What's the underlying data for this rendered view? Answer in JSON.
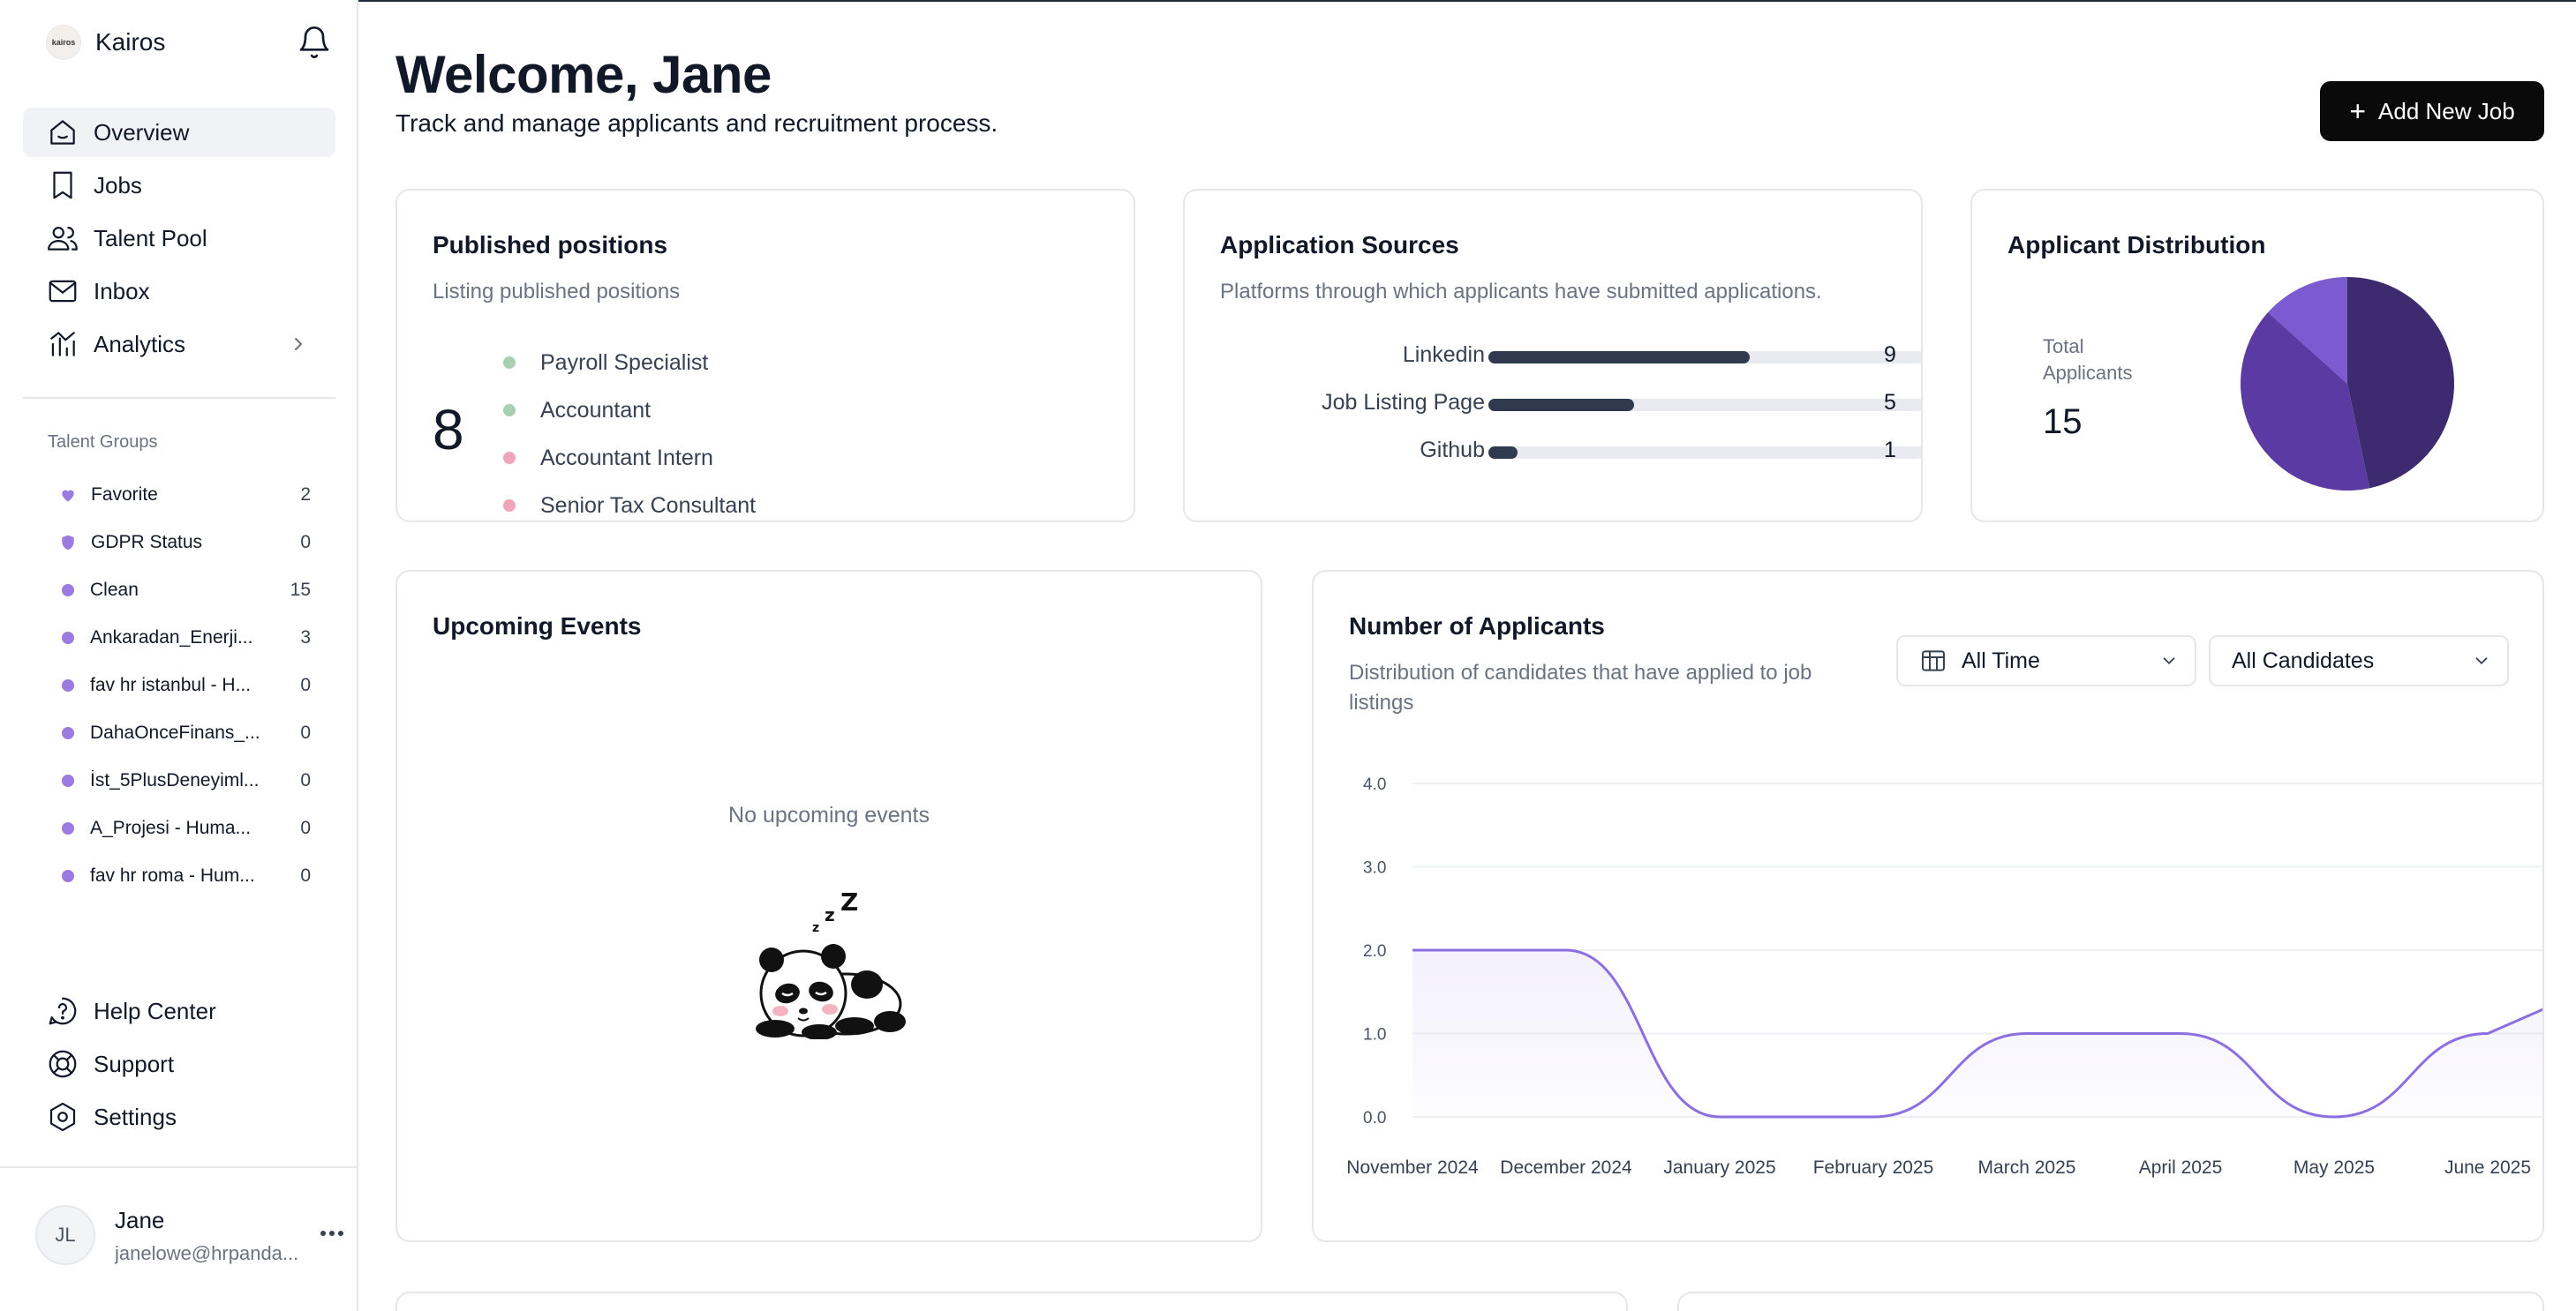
{
  "app": {
    "name": "Kairos",
    "logo_text": "kairos"
  },
  "nav": {
    "main": [
      {
        "label": "Overview",
        "icon": "home-icon",
        "active": true
      },
      {
        "label": "Jobs",
        "icon": "bookmark-icon"
      },
      {
        "label": "Talent Pool",
        "icon": "users-icon"
      },
      {
        "label": "Inbox",
        "icon": "mail-icon"
      },
      {
        "label": "Analytics",
        "icon": "chart-icon"
      }
    ],
    "talent_groups_title": "Talent Groups",
    "talent_groups": [
      {
        "name": "Favorite",
        "count": "2",
        "icon": "heart-icon"
      },
      {
        "name": "GDPR Status",
        "count": "0",
        "icon": "shield-icon"
      },
      {
        "name": "Clean",
        "count": "15"
      },
      {
        "name": "Ankaradan_Enerji...",
        "count": "3"
      },
      {
        "name": "fav hr istanbul - H...",
        "count": "0"
      },
      {
        "name": "DahaOnceFinans_...",
        "count": "0"
      },
      {
        "name": "İst_5PlusDeneyiml...",
        "count": "0"
      },
      {
        "name": "A_Projesi - Huma...",
        "count": "0"
      },
      {
        "name": "fav hr roma - Hum...",
        "count": "0"
      }
    ],
    "bottom": [
      {
        "label": "Help Center",
        "icon": "help-icon"
      },
      {
        "label": "Support",
        "icon": "lifebuoy-icon"
      },
      {
        "label": "Settings",
        "icon": "settings-icon"
      }
    ]
  },
  "user": {
    "initials": "JL",
    "name": "Jane",
    "email": "janelowe@hrpanda..."
  },
  "header": {
    "title": "Welcome, Jane",
    "subtitle": "Track and manage applicants and recruitment process.",
    "add_job_label": "Add New Job"
  },
  "published": {
    "title": "Published positions",
    "subtitle": "Listing published positions",
    "count": "8",
    "items": [
      {
        "label": "Payroll Specialist",
        "color": "#a8cfb0"
      },
      {
        "label": "Accountant",
        "color": "#a8cfb0"
      },
      {
        "label": "Accountant Intern",
        "color": "#f0a6b8"
      },
      {
        "label": "Senior Tax Consultant",
        "color": "#f0a6b8"
      }
    ]
  },
  "sources": {
    "title": "Application Sources",
    "subtitle": "Platforms through which applicants have submitted applications.",
    "max": 15,
    "items": [
      {
        "label": "Linkedin",
        "value": 9
      },
      {
        "label": "Job Listing Page",
        "value": 5
      },
      {
        "label": "Github",
        "value": 1
      }
    ]
  },
  "distribution": {
    "title": "Applicant Distribution",
    "total_label": "Total Applicants",
    "total": "15",
    "slices": [
      {
        "value": 7,
        "color": "#3e2a6e"
      },
      {
        "value": 6,
        "color": "#5b3aa4"
      },
      {
        "value": 2,
        "color": "#7c5ad0"
      }
    ]
  },
  "events": {
    "title": "Upcoming Events",
    "empty_text": "No upcoming events"
  },
  "applicants": {
    "title": "Number of Applicants",
    "subtitle_line1": "Distribution of candidates that have applied to job",
    "subtitle_line2": "listings",
    "filter_time": "All Time",
    "filter_candidates": "All Candidates"
  },
  "chart_data": {
    "type": "area",
    "x": [
      "November 2024",
      "December 2024",
      "January 2025",
      "February 2025",
      "March 2025",
      "April 2025",
      "May 2025",
      "June 2025"
    ],
    "values": [
      2,
      2,
      0,
      0,
      1,
      1,
      0,
      1
    ],
    "y_ticks": [
      "0.0",
      "1.0",
      "2.0",
      "3.0",
      "4.0"
    ],
    "ylim": [
      0,
      4
    ],
    "line_color": "#8b6fe0",
    "grid": true
  }
}
